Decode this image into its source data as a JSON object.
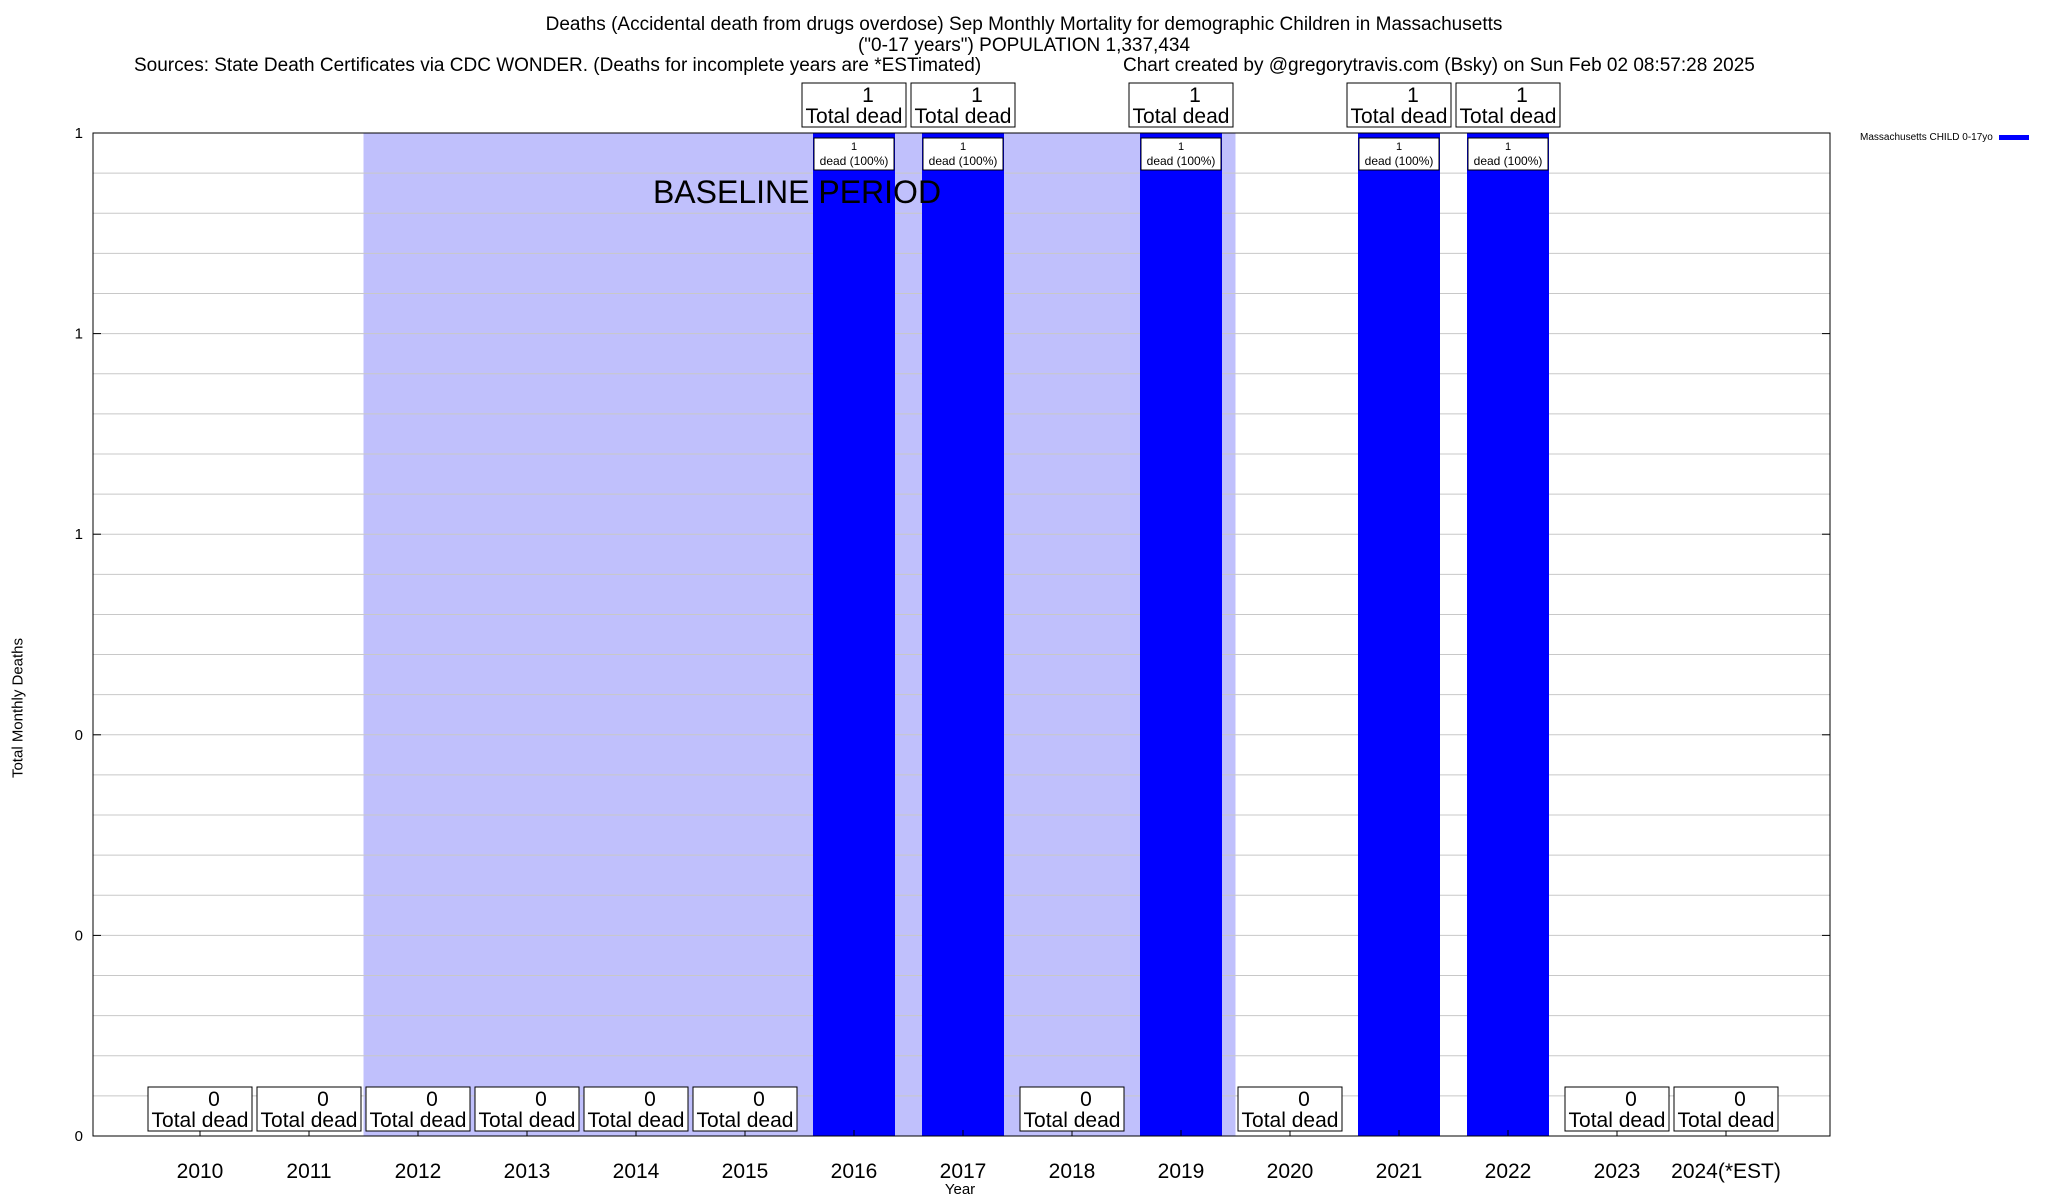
{
  "chart_data": {
    "type": "bar",
    "title": "Deaths (Accidental death from drugs overdose) Sep Monthly Mortality for demographic Children in Massachusetts",
    "title2": "(\"0-17 years\") POPULATION 1,337,434",
    "sources": "Sources: State Death Certificates via CDC WONDER. (Deaths for incomplete years are *ESTimated)",
    "credit": "Chart created by @gregorytravis.com (Bsky) on Sun Feb 02 08:57:28 2025",
    "xlabel": "Year",
    "ylabel": "Total Monthly Deaths",
    "ylim": [
      0,
      1
    ],
    "y_tick_labels": [
      "0",
      "0",
      "0",
      "1",
      "1",
      "1"
    ],
    "grid": true,
    "categories": [
      "2010",
      "2011",
      "2012",
      "2013",
      "2014",
      "2015",
      "2016",
      "2017",
      "2018",
      "2019",
      "2020",
      "2021",
      "2022",
      "2023",
      "2024(*EST)"
    ],
    "series": [
      {
        "name": "Massachusetts CHILD 0-17yo",
        "color": "#0000ff",
        "values": [
          0,
          0,
          0,
          0,
          0,
          0,
          1,
          1,
          0,
          1,
          0,
          1,
          1,
          0,
          0
        ]
      }
    ],
    "total_label_suffix": "Total dead",
    "bar_label_suffix": "dead (100%)",
    "baseline": {
      "label": "BASELINE PERIOD",
      "from": "2012",
      "to": "2019",
      "color": "#c0c0fc"
    },
    "legend_position": "top-right"
  }
}
